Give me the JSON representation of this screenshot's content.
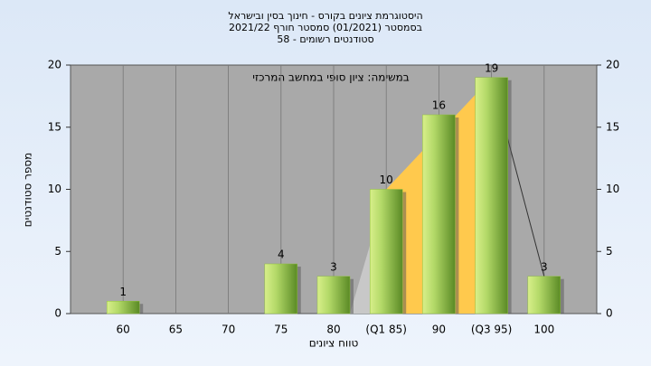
{
  "chart_data": {
    "type": "bar",
    "title": [
      "היסטוגרמת ציונים בקורס - חינוך בסין ובישראל",
      "בסמסטר  (01/2021)  סמסטר חורף  2021/22",
      "סטודנטים רשומים - 58"
    ],
    "subtitle": "במשימה: ציון סופי במחשב המרכזי",
    "x_label": "טווח ציונים",
    "y_label": "מספר סטודנטים",
    "categories": [
      "60",
      "65",
      "70",
      "75",
      "80",
      "(Q1 85)",
      "90",
      "(Q3 95)",
      "100"
    ],
    "values": [
      1,
      0,
      0,
      4,
      3,
      10,
      16,
      19,
      3
    ],
    "color": "#8fbf3f",
    "ylim": [
      0,
      20
    ],
    "yticks": [
      0,
      5,
      10,
      15,
      20
    ],
    "y2lim": [
      0,
      20
    ],
    "y2ticks": [
      0,
      5,
      10,
      15,
      20
    ],
    "grid": true
  }
}
